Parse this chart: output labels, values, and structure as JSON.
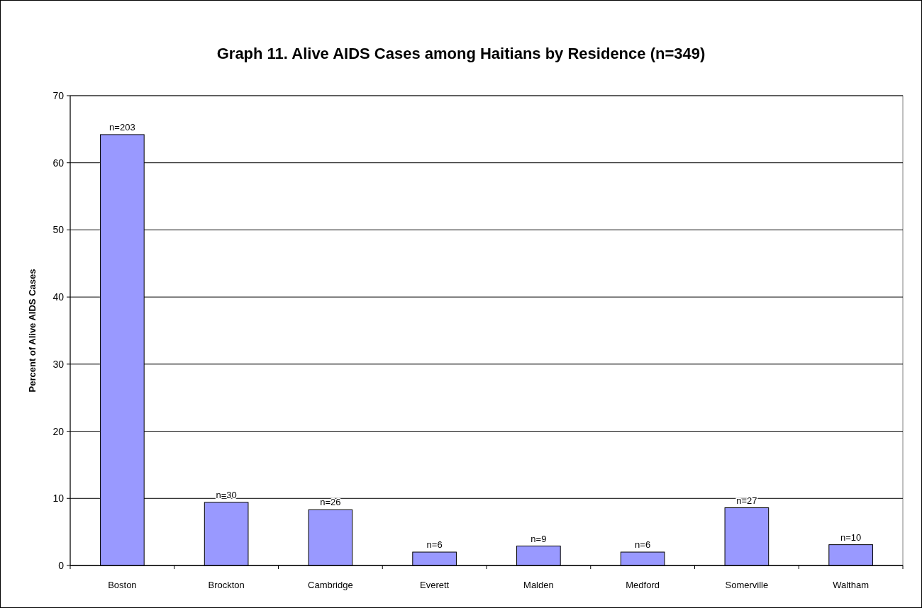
{
  "chart_data": {
    "type": "bar",
    "title": "Graph 11. Alive AIDS Cases among Haitians by Residence (n=349)",
    "ylabel": "Percent of Alive AIDS Cases",
    "categories": [
      "Boston",
      "Brockton",
      "Cambridge",
      "Everett",
      "Malden",
      "Medford",
      "Somerville",
      "Waltham"
    ],
    "values": [
      64.2,
      9.4,
      8.3,
      2.0,
      2.9,
      2.0,
      8.6,
      3.1
    ],
    "annotations": [
      {
        "text": "n=203",
        "x": "Boston",
        "y": 64.2
      },
      {
        "text": "n=30",
        "x": "Brockton",
        "y": 9.4
      },
      {
        "text": "n=26",
        "x": "Cambridge",
        "y": 8.3
      },
      {
        "text": "n=6",
        "x": "Everett",
        "y": 2.0
      },
      {
        "text": "n=9",
        "x": "Malden",
        "y": 2.9
      },
      {
        "text": "n=6",
        "x": "Medford",
        "y": 2.0
      },
      {
        "text": "n=27",
        "x": "Somerville",
        "y": 8.6
      },
      {
        "text": "n=10",
        "x": "Waltham",
        "y": 3.1
      }
    ],
    "color": "#9999ff",
    "ylim": [
      0,
      70
    ],
    "yticks": [
      0,
      10,
      20,
      30,
      40,
      50,
      60,
      70
    ],
    "grid": "y"
  }
}
